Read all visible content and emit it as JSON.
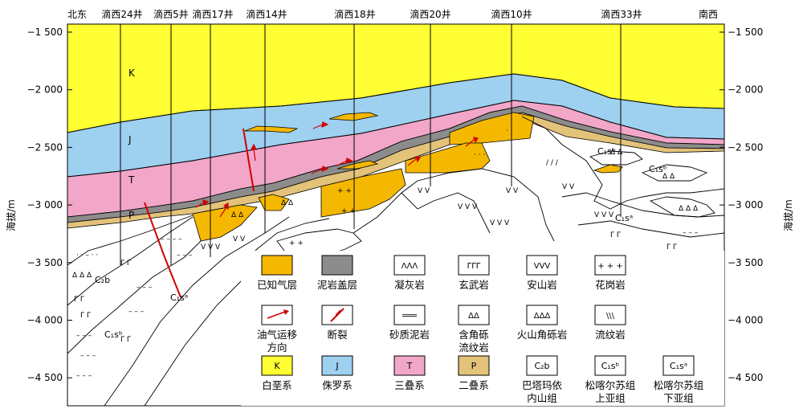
{
  "axis": {
    "ylabel_left": "海拔/m",
    "ylabel_right": "海拔/m",
    "ticks": [
      "−1 500",
      "−2 000",
      "−2 500",
      "−3 000",
      "−3 500",
      "−4 000",
      "−4 500"
    ]
  },
  "directions": {
    "left": "北东",
    "right": "南西"
  },
  "wells": [
    "滴西24井",
    "滴西5井",
    "滴西17井",
    "滴西14井",
    "滴西18井",
    "滴西20井",
    "滴西10井",
    "滴西33井"
  ],
  "layer_labels": {
    "K": "K",
    "J": "J",
    "T": "T",
    "P": "P"
  },
  "formation_labels": {
    "c2b": "C₂b",
    "c1sb": "C₁sᵇ",
    "c1sa": "C₁sᵃ"
  },
  "legend": [
    {
      "label": "已知气层",
      "color": "#f5b800"
    },
    {
      "label": "泥岩盖层",
      "color": "#8c8c8c"
    },
    {
      "label": "凝灰岩"
    },
    {
      "label": "玄武岩"
    },
    {
      "label": "安山岩"
    },
    {
      "label": "花岗岩"
    },
    {
      "label": "油气运移方向",
      "lines": [
        "油气运移",
        "方向"
      ]
    },
    {
      "label": "断裂"
    },
    {
      "label": "砂质泥岩"
    },
    {
      "label": "含角砾流纹岩",
      "lines": [
        "含角砾",
        "流纹岩"
      ]
    },
    {
      "label": "火山角砾岩"
    },
    {
      "label": "流纹岩"
    },
    {
      "label": "白垩系",
      "symbol": "K",
      "color": "#ffff33"
    },
    {
      "label": "侏罗系",
      "symbol": "J",
      "color": "#9ed0f0"
    },
    {
      "label": "三叠系",
      "symbol": "T",
      "color": "#f2a6c8"
    },
    {
      "label": "二叠系",
      "symbol": "P",
      "color": "#e3c27a"
    },
    {
      "label": "巴塔玛依内山组",
      "symbol": "C₂b",
      "lines": [
        "巴塔玛依",
        "内山组"
      ]
    },
    {
      "label": "松喀尔苏组上亚组",
      "symbol": "C₁sᵇ",
      "lines": [
        "松喀尔苏组",
        "上亚组"
      ]
    },
    {
      "label": "松喀尔苏组下亚组",
      "symbol": "C₁sᵃ",
      "lines": [
        "松喀尔苏组",
        "下亚组"
      ]
    }
  ]
}
